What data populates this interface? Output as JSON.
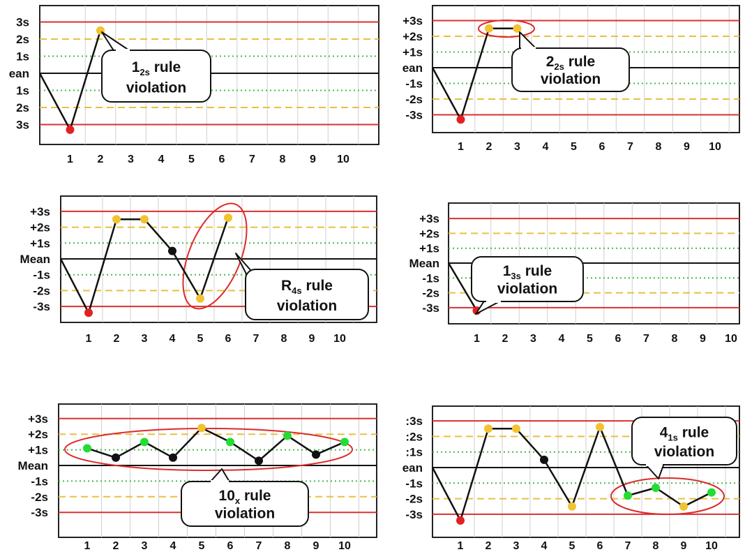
{
  "chart_data": [
    {
      "type": "line",
      "title": "",
      "categories": [
        "1",
        "2",
        "3",
        "4",
        "5",
        "6",
        "7",
        "8",
        "9",
        "10"
      ],
      "y_labels": [
        "3s",
        "2s",
        "1s",
        "ean",
        "1s",
        "2s",
        "3s"
      ],
      "points": [
        {
          "x": 0,
          "y": 0
        },
        {
          "x": 1,
          "y": -3.3
        },
        {
          "x": 2,
          "y": 2.5
        }
      ],
      "point_colors": [
        "none",
        "red",
        "gold"
      ],
      "callout": {
        "main": "1",
        "sub": "2s",
        "rest": " rule",
        "line2": "violation"
      },
      "highlight": "none"
    },
    {
      "type": "line",
      "title": "",
      "categories": [
        "1",
        "2",
        "3",
        "4",
        "5",
        "6",
        "7",
        "8",
        "9",
        "10"
      ],
      "y_labels": [
        "+3s",
        "+2s",
        "+1s",
        "ean",
        "-1s",
        "-2s",
        "-3s"
      ],
      "points": [
        {
          "x": 0,
          "y": 0
        },
        {
          "x": 1,
          "y": -3.3
        },
        {
          "x": 2,
          "y": 2.5
        },
        {
          "x": 3,
          "y": 2.5
        }
      ],
      "point_colors": [
        "none",
        "red",
        "gold",
        "gold"
      ],
      "callout": {
        "main": "2",
        "sub": "2s",
        "rest": " rule",
        "line2": "violation"
      },
      "highlight": "ellipse around points 2-3"
    },
    {
      "type": "line",
      "title": "",
      "categories": [
        "1",
        "2",
        "3",
        "4",
        "5",
        "6",
        "7",
        "8",
        "9",
        "10"
      ],
      "y_labels": [
        "+3s",
        "+2s",
        "+1s",
        "Mean",
        "-1s",
        "-2s",
        "-3s"
      ],
      "points": [
        {
          "x": 0,
          "y": 0
        },
        {
          "x": 1,
          "y": -3.4
        },
        {
          "x": 2,
          "y": 2.5
        },
        {
          "x": 3,
          "y": 2.5
        },
        {
          "x": 4,
          "y": 0.5
        },
        {
          "x": 5,
          "y": -2.5
        },
        {
          "x": 6,
          "y": 2.6
        }
      ],
      "point_colors": [
        "none",
        "red",
        "gold",
        "gold",
        "black",
        "gold",
        "gold"
      ],
      "callout": {
        "main": "R",
        "sub": "4s",
        "rest": " rule",
        "line2": "violation"
      },
      "highlight": "ellipse around points 5-6"
    },
    {
      "type": "line",
      "title": "",
      "categories": [
        "1",
        "2",
        "3",
        "4",
        "5",
        "6",
        "7",
        "8",
        "9",
        "10"
      ],
      "y_labels": [
        "+3s",
        "+2s",
        "+1s",
        "Mean",
        "-1s",
        "-2s",
        "-3s"
      ],
      "points": [
        {
          "x": 0,
          "y": 0
        },
        {
          "x": 1,
          "y": -3.2
        }
      ],
      "point_colors": [
        "none",
        "red"
      ],
      "callout": {
        "main": "1",
        "sub": "3s",
        "rest": " rule",
        "line2": "violation"
      },
      "highlight": "none"
    },
    {
      "type": "line",
      "title": "",
      "categories": [
        "1",
        "2",
        "3",
        "4",
        "5",
        "6",
        "7",
        "8",
        "9",
        "10"
      ],
      "y_labels": [
        "+3s",
        "+2s",
        "+1s",
        "Mean",
        "-1s",
        "-2s",
        "-3s"
      ],
      "points": [
        {
          "x": 1,
          "y": 1.1
        },
        {
          "x": 2,
          "y": 0.5
        },
        {
          "x": 3,
          "y": 1.5
        },
        {
          "x": 4,
          "y": 0.5
        },
        {
          "x": 5,
          "y": 2.4
        },
        {
          "x": 6,
          "y": 1.5
        },
        {
          "x": 7,
          "y": 0.3
        },
        {
          "x": 8,
          "y": 1.9
        },
        {
          "x": 9,
          "y": 0.7
        },
        {
          "x": 10,
          "y": 1.5
        }
      ],
      "point_colors": [
        "green",
        "black",
        "green",
        "black",
        "gold",
        "green",
        "black",
        "green",
        "black",
        "green"
      ],
      "callout": {
        "main": "10",
        "sub": "x",
        "rest": " rule",
        "line2": "violation"
      },
      "highlight": "ellipse around points 1-10"
    },
    {
      "type": "line",
      "title": "",
      "categories": [
        "1",
        "2",
        "3",
        "4",
        "5",
        "6",
        "7",
        "8",
        "9",
        "10"
      ],
      "y_labels": [
        ":3s",
        ":2s",
        ":1s",
        "ean",
        "-1s",
        "-2s",
        "-3s"
      ],
      "points": [
        {
          "x": 0,
          "y": 0
        },
        {
          "x": 1,
          "y": -3.4
        },
        {
          "x": 2,
          "y": 2.5
        },
        {
          "x": 3,
          "y": 2.5
        },
        {
          "x": 4,
          "y": 0.5
        },
        {
          "x": 5,
          "y": -2.5
        },
        {
          "x": 6,
          "y": 2.6
        },
        {
          "x": 7,
          "y": -1.8
        },
        {
          "x": 8,
          "y": -1.3
        },
        {
          "x": 9,
          "y": -2.5
        },
        {
          "x": 10,
          "y": -1.6
        }
      ],
      "point_colors": [
        "none",
        "red",
        "gold",
        "gold",
        "black",
        "gold",
        "gold",
        "green",
        "green",
        "gold",
        "green"
      ],
      "callout": {
        "main": "4",
        "sub": "1s",
        "rest": " rule",
        "line2": "violation"
      },
      "highlight": "ellipse around points 7-10"
    }
  ]
}
